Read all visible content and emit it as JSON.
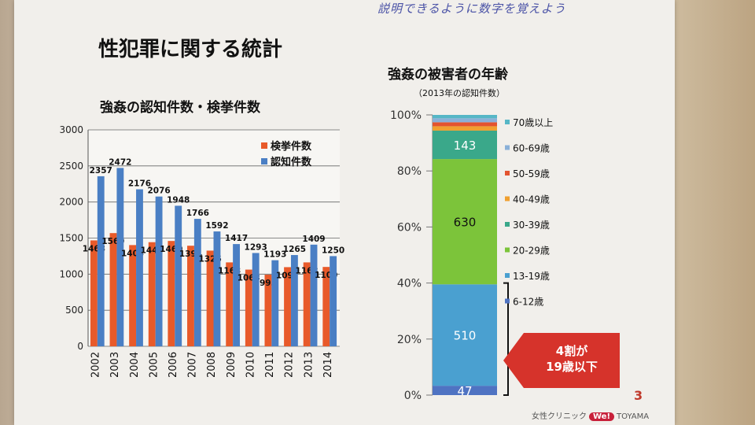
{
  "handwritten_note": "説明できるように数字を覚えよう",
  "slide_title": "性犯罪に関する統計",
  "page_number": "3",
  "footer": {
    "prefix": "女性クリニック",
    "brand": "We!",
    "suffix": "TOYAMA"
  },
  "colors": {
    "arrest": "#e85a2a",
    "recognized": "#4a7fc4",
    "callout": "#d6332b"
  },
  "chart_data": [
    {
      "type": "bar",
      "title": "強姦の認知件数・検挙件数",
      "categories": [
        "2002",
        "2003",
        "2004",
        "2005",
        "2006",
        "2007",
        "2008",
        "2009",
        "2010",
        "2011",
        "2012",
        "2013",
        "2014"
      ],
      "series": [
        {
          "name": "検挙件数",
          "values": [
            1468,
            1569,
            1403,
            1443,
            1460,
            1394,
            1326,
            1163,
            1063,
            993,
            1097,
            1163,
            1100
          ]
        },
        {
          "name": "認知件数",
          "values": [
            2357,
            2472,
            2176,
            2076,
            1948,
            1766,
            1592,
            1417,
            1293,
            1193,
            1265,
            1409,
            1250
          ]
        }
      ],
      "ylim": [
        0,
        3000
      ],
      "yticks": [
        0,
        500,
        1000,
        1500,
        2000,
        2500,
        3000
      ],
      "legend": "top-right",
      "grid": true
    },
    {
      "type": "bar",
      "stacked": true,
      "title": "強姦の被害者の年齢",
      "subtitle": "（2013年の認知件数）",
      "yticks": [
        "0%",
        "20%",
        "40%",
        "60%",
        "80%",
        "100%"
      ],
      "segments": [
        {
          "name": "6-12歳",
          "value": 47,
          "color": "#4f73c2",
          "label": "47"
        },
        {
          "name": "13-19歳",
          "value": 510,
          "color": "#4aa0d0",
          "label": "510"
        },
        {
          "name": "20-29歳",
          "value": 630,
          "color": "#7cc43a",
          "label": "630"
        },
        {
          "name": "30-39歳",
          "value": 143,
          "color": "#3aa88a",
          "label": "143"
        },
        {
          "name": "40-49歳",
          "value": 22,
          "color": "#f0a030",
          "label": ""
        },
        {
          "name": "50-59歳",
          "value": 20,
          "color": "#e3542f",
          "label": ""
        },
        {
          "name": "60-69歳",
          "value": 20,
          "color": "#8ab0d8",
          "label": ""
        },
        {
          "name": "70歳以上",
          "value": 17,
          "color": "#56b7c6",
          "label": ""
        }
      ],
      "legend_order": [
        "70歳以上",
        "60-69歳",
        "50-59歳",
        "40-49歳",
        "30-39歳",
        "20-29歳",
        "13-19歳",
        "6-12歳"
      ],
      "callout": "4割が\n19歳以下"
    }
  ]
}
